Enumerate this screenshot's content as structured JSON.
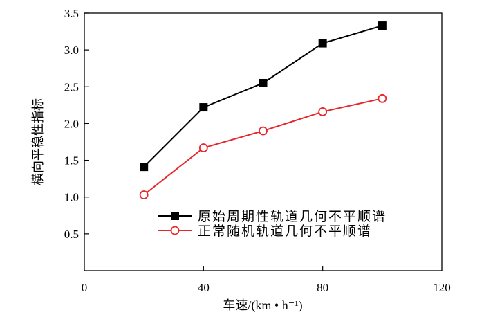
{
  "chart_data": {
    "type": "line",
    "title": "",
    "xlabel": "车速/(km • h⁻¹)",
    "ylabel": "横向平稳性指标",
    "xlim": [
      0,
      120
    ],
    "ylim": [
      0,
      3.5
    ],
    "xticks": [
      "0",
      "40",
      "80",
      "120"
    ],
    "yticks": [
      "0.5",
      "1.0",
      "1.5",
      "2.0",
      "2.5",
      "3.0",
      "3.5"
    ],
    "grid": false,
    "legend_position": "bottom-right",
    "x": [
      20,
      40,
      60,
      80,
      100
    ],
    "series": [
      {
        "name": "原始周期性轨道几何不平顺谱",
        "color": "#000000",
        "marker": "filled-square",
        "values": [
          1.41,
          2.22,
          2.55,
          3.09,
          3.33
        ]
      },
      {
        "name": "正常随机轨道几何不平顺谱",
        "color": "#e8262a",
        "marker": "open-circle",
        "values": [
          1.03,
          1.67,
          1.9,
          2.16,
          2.34
        ]
      }
    ]
  }
}
